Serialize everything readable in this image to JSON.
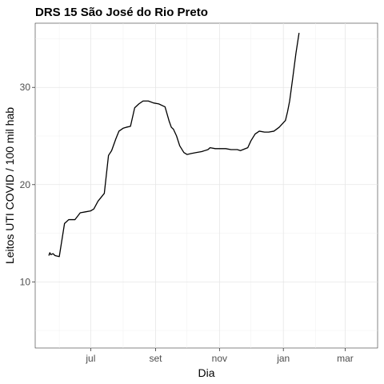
{
  "chart_data": {
    "type": "line",
    "title": "DRS 15 São José do Rio Preto",
    "xlabel": "Dia",
    "ylabel": "Leitos UTI COVID / 100 mil hab",
    "x_ticks": [
      "jul",
      "set",
      "nov",
      "jan",
      "mar"
    ],
    "y_ticks": [
      10,
      20,
      30
    ],
    "xlim": [
      "2020-05-09",
      "2021-04-01"
    ],
    "ylim": [
      3.2,
      36.6
    ],
    "grid": true,
    "series": [
      {
        "color": "#000000",
        "points": [
          [
            "2020-05-22",
            12.7
          ],
          [
            "2020-05-23",
            13.0
          ],
          [
            "2020-05-24",
            12.8
          ],
          [
            "2020-05-26",
            12.9
          ],
          [
            "2020-05-28",
            12.7
          ],
          [
            "2020-06-01",
            12.6
          ],
          [
            "2020-06-06",
            16.0
          ],
          [
            "2020-06-10",
            16.4
          ],
          [
            "2020-06-16",
            16.4
          ],
          [
            "2020-06-21",
            17.1
          ],
          [
            "2020-06-26",
            17.2
          ],
          [
            "2020-07-01",
            17.3
          ],
          [
            "2020-07-04",
            17.5
          ],
          [
            "2020-07-08",
            18.3
          ],
          [
            "2020-07-14",
            19.1
          ],
          [
            "2020-07-18",
            23.0
          ],
          [
            "2020-07-21",
            23.5
          ],
          [
            "2020-07-25",
            24.7
          ],
          [
            "2020-07-28",
            25.5
          ],
          [
            "2020-08-01",
            25.8
          ],
          [
            "2020-08-04",
            25.9
          ],
          [
            "2020-08-08",
            26.0
          ],
          [
            "2020-08-12",
            27.9
          ],
          [
            "2020-08-16",
            28.3
          ],
          [
            "2020-08-20",
            28.6
          ],
          [
            "2020-08-25",
            28.6
          ],
          [
            "2020-08-30",
            28.4
          ],
          [
            "2020-09-04",
            28.3
          ],
          [
            "2020-09-10",
            28.0
          ],
          [
            "2020-09-14",
            26.5
          ],
          [
            "2020-09-16",
            25.9
          ],
          [
            "2020-09-18",
            25.7
          ],
          [
            "2020-09-21",
            25.0
          ],
          [
            "2020-09-24",
            24.0
          ],
          [
            "2020-09-28",
            23.3
          ],
          [
            "2020-10-01",
            23.1
          ],
          [
            "2020-10-05",
            23.2
          ],
          [
            "2020-10-10",
            23.3
          ],
          [
            "2020-10-15",
            23.4
          ],
          [
            "2020-10-21",
            23.6
          ],
          [
            "2020-10-23",
            23.8
          ],
          [
            "2020-10-28",
            23.7
          ],
          [
            "2020-11-02",
            23.7
          ],
          [
            "2020-11-07",
            23.7
          ],
          [
            "2020-11-12",
            23.6
          ],
          [
            "2020-11-18",
            23.6
          ],
          [
            "2020-11-21",
            23.5
          ],
          [
            "2020-11-28",
            23.8
          ],
          [
            "2020-12-01",
            24.5
          ],
          [
            "2020-12-05",
            25.2
          ],
          [
            "2020-12-09",
            25.5
          ],
          [
            "2020-12-14",
            25.4
          ],
          [
            "2020-12-18",
            25.4
          ],
          [
            "2020-12-23",
            25.5
          ],
          [
            "2020-12-28",
            25.9
          ],
          [
            "2021-01-03",
            26.6
          ],
          [
            "2021-01-05",
            27.5
          ],
          [
            "2021-01-07",
            28.6
          ],
          [
            "2021-01-10",
            31.0
          ],
          [
            "2021-01-13",
            33.5
          ],
          [
            "2021-01-16",
            35.6
          ]
        ]
      }
    ]
  }
}
